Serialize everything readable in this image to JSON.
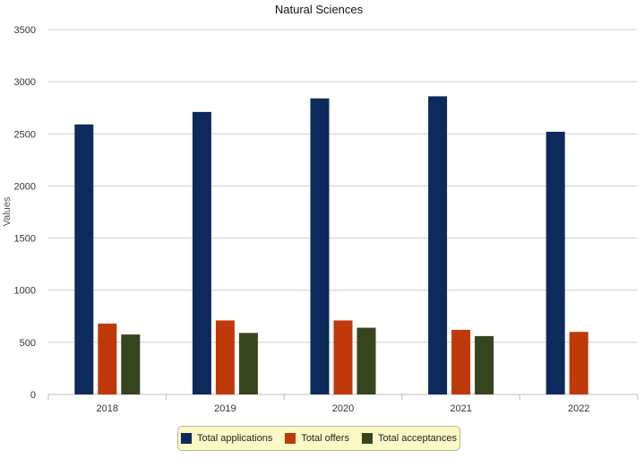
{
  "chart_data": {
    "type": "bar",
    "title": "Natural Sciences",
    "xlabel": "",
    "ylabel": "Values",
    "ylim": [
      0,
      3500
    ],
    "yticks": [
      0,
      500,
      1000,
      1500,
      2000,
      2500,
      3000,
      3500
    ],
    "grid": true,
    "legend_position": "bottom",
    "categories": [
      "2018",
      "2019",
      "2020",
      "2021",
      "2022"
    ],
    "series": [
      {
        "name": "Total applications",
        "color": "#0d2a5c",
        "values": [
          2590,
          2710,
          2840,
          2860,
          2520
        ]
      },
      {
        "name": "Total offers",
        "color": "#c0390b",
        "values": [
          680,
          710,
          710,
          620,
          600
        ]
      },
      {
        "name": "Total acceptances",
        "color": "#37451f",
        "values": [
          575,
          590,
          640,
          560,
          null
        ]
      }
    ]
  }
}
